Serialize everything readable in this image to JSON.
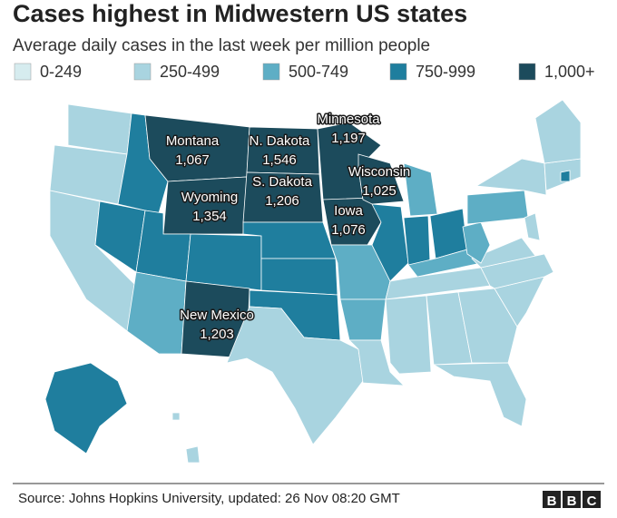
{
  "title": "Cases highest in Midwestern US states",
  "subtitle": "Average daily cases in the last week per million people",
  "legend": [
    {
      "label": "0-249",
      "color": "#d6ecef"
    },
    {
      "label": "250-499",
      "color": "#a9d4e0"
    },
    {
      "label": "500-749",
      "color": "#5eaec5"
    },
    {
      "label": "750-999",
      "color": "#1f7e9e"
    },
    {
      "label": "1,000+",
      "color": "#1c4b5c"
    }
  ],
  "labels": [
    {
      "state": "Montana",
      "value": "1,067"
    },
    {
      "state": "N. Dakota",
      "value": "1,546"
    },
    {
      "state": "Minnesota",
      "value": "1,197"
    },
    {
      "state": "Wisconsin",
      "value": "1,025"
    },
    {
      "state": "S. Dakota",
      "value": "1,206"
    },
    {
      "state": "Wyoming",
      "value": "1,354"
    },
    {
      "state": "Iowa",
      "value": "1,076"
    },
    {
      "state": "New Mexico",
      "value": "1,203"
    }
  ],
  "source": "Source: Johns Hopkins University, updated: 26 Nov 08:20 GMT",
  "logo": [
    "B",
    "B",
    "C"
  ]
}
